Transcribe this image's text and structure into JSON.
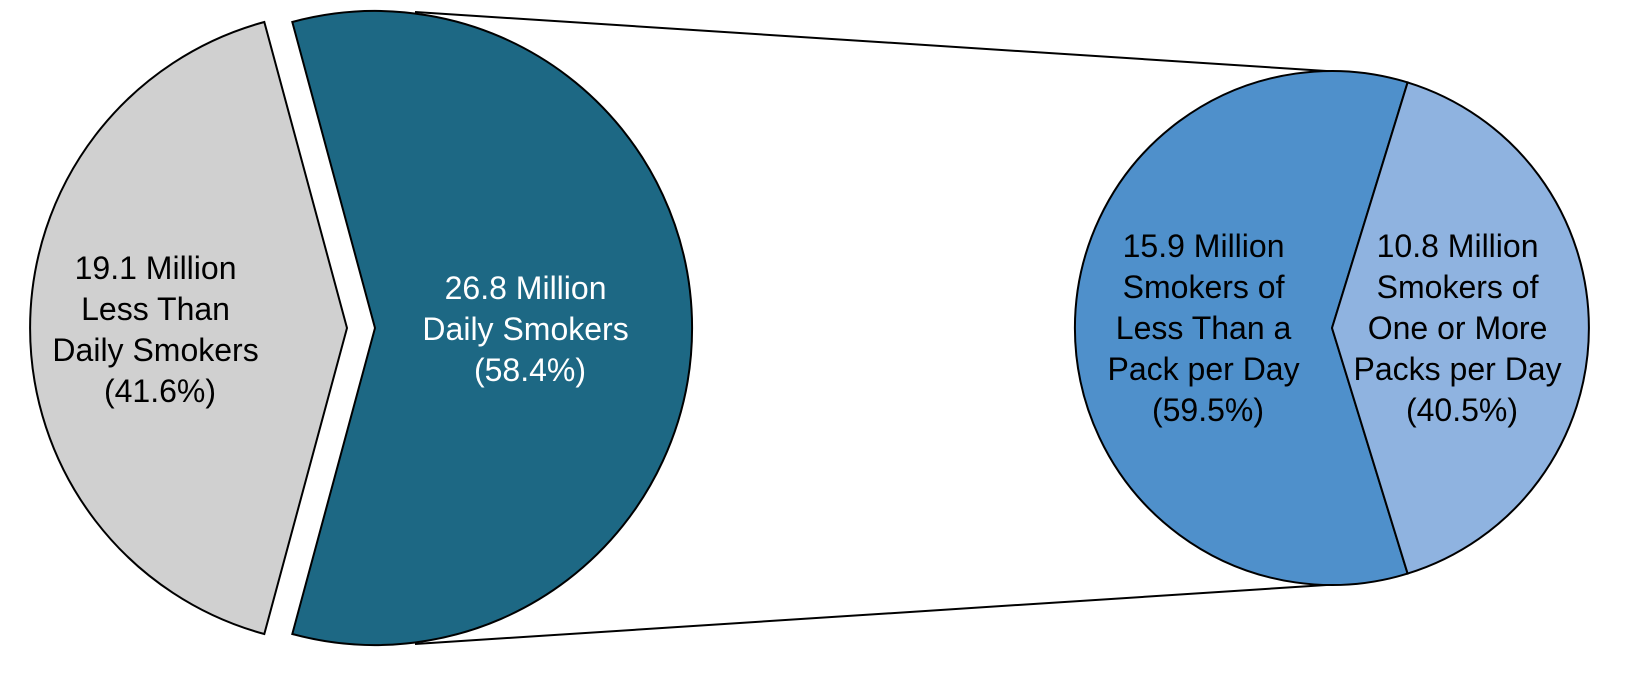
{
  "chart_data": [
    {
      "type": "pie",
      "title": "",
      "slices": [
        {
          "label_lines": [
            "19.1 Million",
            "Less Than",
            "Daily Smokers",
            "(41.6%)"
          ],
          "value_millions": 19.1,
          "percent": 41.6,
          "color": "#d0d0d0",
          "text_color": "#000000"
        },
        {
          "label_lines": [
            "26.8 Million",
            "Daily Smokers",
            "(58.4%)"
          ],
          "value_millions": 26.8,
          "percent": 58.4,
          "color": "#1d6884",
          "text_color": "#ffffff",
          "exploded": true,
          "expanded_into_next_chart": true
        }
      ]
    },
    {
      "type": "pie",
      "title": "",
      "breakdown_of": "26.8 Million Daily Smokers",
      "slices": [
        {
          "label_lines": [
            "15.9 Million",
            "Smokers of",
            "Less Than a",
            "Pack per Day",
            "(59.5%)"
          ],
          "value_millions": 15.9,
          "percent": 59.5,
          "color": "#4f90cb",
          "text_color": "#000000"
        },
        {
          "label_lines": [
            "10.8 Million",
            "Smokers of",
            "One or More",
            "Packs per Day",
            "(40.5%)"
          ],
          "value_millions": 10.8,
          "percent": 40.5,
          "color": "#8fb3e0",
          "text_color": "#000000"
        }
      ]
    }
  ]
}
